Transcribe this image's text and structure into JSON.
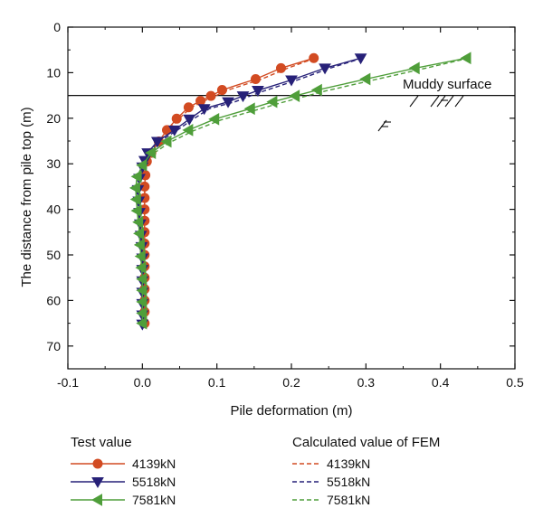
{
  "chart_data": {
    "type": "line",
    "xlabel": "Pile deformation (m)",
    "ylabel": "The distance from pile top (m)",
    "xlim": [
      -0.1,
      0.5
    ],
    "ylim": [
      0,
      75
    ],
    "y_inverted": true,
    "x_ticks": [
      -0.1,
      0.0,
      0.1,
      0.2,
      0.3,
      0.4,
      0.5
    ],
    "x_tick_labels": [
      "-0.1",
      "0.0",
      "0.1",
      "0.2",
      "0.3",
      "0.4",
      "0.5"
    ],
    "y_ticks": [
      0,
      10,
      20,
      30,
      40,
      50,
      60,
      70
    ],
    "y_tick_labels": [
      "0",
      "10",
      "20",
      "30",
      "40",
      "50",
      "60",
      "70"
    ],
    "grid": false,
    "annotations": [
      {
        "text": "Muddy surface",
        "x": 0.35,
        "y": 15
      }
    ],
    "reference_line": {
      "y": 15
    },
    "legend": {
      "placement": "below",
      "groups": [
        {
          "title": "Test value",
          "entries": [
            "4139kN",
            "5518kN",
            "7581kN"
          ]
        },
        {
          "title": "Calculated value of FEM",
          "entries": [
            "4139kN",
            "5518kN",
            "7581kN"
          ]
        }
      ]
    },
    "series": [
      {
        "name": "4139kN",
        "group": "Test value",
        "color": "#d24b22",
        "marker": "circle",
        "line": "solid",
        "points": [
          [
            0.23,
            6.8
          ],
          [
            0.186,
            9.0
          ],
          [
            0.152,
            11.4
          ],
          [
            0.107,
            13.8
          ],
          [
            0.092,
            15.1
          ],
          [
            0.078,
            16.2
          ],
          [
            0.062,
            17.6
          ],
          [
            0.046,
            20.1
          ],
          [
            0.033,
            22.6
          ],
          [
            0.022,
            25.1
          ],
          [
            0.012,
            27.6
          ],
          [
            0.006,
            29.5
          ],
          [
            0.004,
            32.5
          ],
          [
            0.003,
            35.0
          ],
          [
            0.003,
            37.5
          ],
          [
            0.003,
            40.0
          ],
          [
            0.003,
            42.5
          ],
          [
            0.003,
            45.0
          ],
          [
            0.003,
            47.5
          ],
          [
            0.003,
            50.0
          ],
          [
            0.003,
            52.5
          ],
          [
            0.003,
            55.0
          ],
          [
            0.003,
            57.5
          ],
          [
            0.003,
            60.0
          ],
          [
            0.003,
            62.5
          ],
          [
            0.003,
            65.0
          ]
        ]
      },
      {
        "name": "5518kN",
        "group": "Test value",
        "color": "#272178",
        "marker": "triangle-down",
        "line": "solid",
        "points": [
          [
            0.293,
            6.8
          ],
          [
            0.245,
            9.0
          ],
          [
            0.2,
            11.6
          ],
          [
            0.155,
            13.9
          ],
          [
            0.135,
            15.1
          ],
          [
            0.115,
            16.4
          ],
          [
            0.083,
            17.9
          ],
          [
            0.063,
            20.2
          ],
          [
            0.043,
            22.6
          ],
          [
            0.02,
            25.1
          ],
          [
            0.007,
            27.6
          ],
          [
            0.003,
            29.3
          ],
          [
            0.0,
            30.7
          ],
          [
            -0.004,
            33.2
          ],
          [
            -0.006,
            35.7
          ],
          [
            -0.005,
            38.2
          ],
          [
            -0.004,
            40.7
          ],
          [
            -0.003,
            43.2
          ],
          [
            -0.002,
            45.7
          ],
          [
            -0.001,
            48.2
          ],
          [
            0.0,
            50.7
          ],
          [
            0.0,
            53.2
          ],
          [
            0.0,
            55.7
          ],
          [
            0.0,
            58.2
          ],
          [
            0.0,
            60.7
          ],
          [
            0.0,
            63.2
          ],
          [
            0.0,
            65.2
          ]
        ]
      },
      {
        "name": "7581kN",
        "group": "Test value",
        "color": "#4f9e3a",
        "marker": "triangle-left",
        "line": "solid",
        "points": [
          [
            0.435,
            6.8
          ],
          [
            0.366,
            9.0
          ],
          [
            0.3,
            11.4
          ],
          [
            0.235,
            13.8
          ],
          [
            0.205,
            15.1
          ],
          [
            0.175,
            16.4
          ],
          [
            0.145,
            17.9
          ],
          [
            0.097,
            20.2
          ],
          [
            0.062,
            22.6
          ],
          [
            0.033,
            25.1
          ],
          [
            0.012,
            27.6
          ],
          [
            0.0,
            30.3
          ],
          [
            -0.007,
            32.8
          ],
          [
            -0.009,
            35.3
          ],
          [
            -0.008,
            37.8
          ],
          [
            -0.007,
            40.3
          ],
          [
            -0.005,
            42.8
          ],
          [
            -0.004,
            45.3
          ],
          [
            -0.003,
            47.8
          ],
          [
            -0.002,
            50.3
          ],
          [
            -0.001,
            52.8
          ],
          [
            0.0,
            55.3
          ],
          [
            0.0,
            57.8
          ],
          [
            0.0,
            60.3
          ],
          [
            0.0,
            62.8
          ],
          [
            0.0,
            65.0
          ]
        ]
      },
      {
        "name": "4139kN",
        "group": "Calculated value of FEM",
        "color": "#d24b22",
        "marker": "none",
        "line": "dashed",
        "points": [
          [
            0.232,
            6.8
          ],
          [
            0.195,
            9.0
          ],
          [
            0.16,
            11.4
          ],
          [
            0.115,
            13.8
          ],
          [
            0.098,
            15.1
          ],
          [
            0.083,
            16.2
          ],
          [
            0.066,
            17.6
          ],
          [
            0.049,
            20.1
          ],
          [
            0.035,
            22.6
          ],
          [
            0.024,
            25.1
          ],
          [
            0.013,
            27.6
          ],
          [
            0.006,
            29.5
          ],
          [
            0.004,
            32.5
          ],
          [
            0.003,
            37.5
          ],
          [
            0.003,
            42.5
          ],
          [
            0.003,
            50.0
          ],
          [
            0.003,
            57.5
          ],
          [
            0.003,
            65.0
          ]
        ]
      },
      {
        "name": "5518kN",
        "group": "Calculated value of FEM",
        "color": "#272178",
        "marker": "none",
        "line": "dashed",
        "points": [
          [
            0.295,
            6.8
          ],
          [
            0.252,
            9.0
          ],
          [
            0.208,
            11.6
          ],
          [
            0.165,
            13.9
          ],
          [
            0.145,
            15.1
          ],
          [
            0.124,
            16.4
          ],
          [
            0.09,
            17.9
          ],
          [
            0.068,
            20.2
          ],
          [
            0.047,
            22.6
          ],
          [
            0.023,
            25.1
          ],
          [
            0.008,
            27.6
          ],
          [
            0.003,
            29.3
          ],
          [
            0.0,
            30.7
          ],
          [
            -0.004,
            33.2
          ],
          [
            -0.006,
            35.7
          ],
          [
            -0.004,
            40.7
          ],
          [
            -0.002,
            45.7
          ],
          [
            0.0,
            50.7
          ],
          [
            0.0,
            58.2
          ],
          [
            0.0,
            65.2
          ]
        ]
      },
      {
        "name": "7581kN",
        "group": "Calculated value of FEM",
        "color": "#4f9e3a",
        "marker": "none",
        "line": "dashed",
        "points": [
          [
            0.438,
            6.8
          ],
          [
            0.375,
            9.2
          ],
          [
            0.31,
            11.6
          ],
          [
            0.246,
            14.0
          ],
          [
            0.216,
            15.3
          ],
          [
            0.186,
            16.6
          ],
          [
            0.155,
            18.1
          ],
          [
            0.105,
            20.4
          ],
          [
            0.068,
            22.8
          ],
          [
            0.037,
            25.3
          ],
          [
            0.014,
            27.8
          ],
          [
            0.001,
            30.5
          ],
          [
            -0.007,
            32.8
          ],
          [
            -0.009,
            35.3
          ],
          [
            -0.007,
            40.3
          ],
          [
            -0.004,
            45.3
          ],
          [
            -0.002,
            50.3
          ],
          [
            0.0,
            55.3
          ],
          [
            0.0,
            60.3
          ],
          [
            0.0,
            65.0
          ]
        ]
      }
    ]
  }
}
